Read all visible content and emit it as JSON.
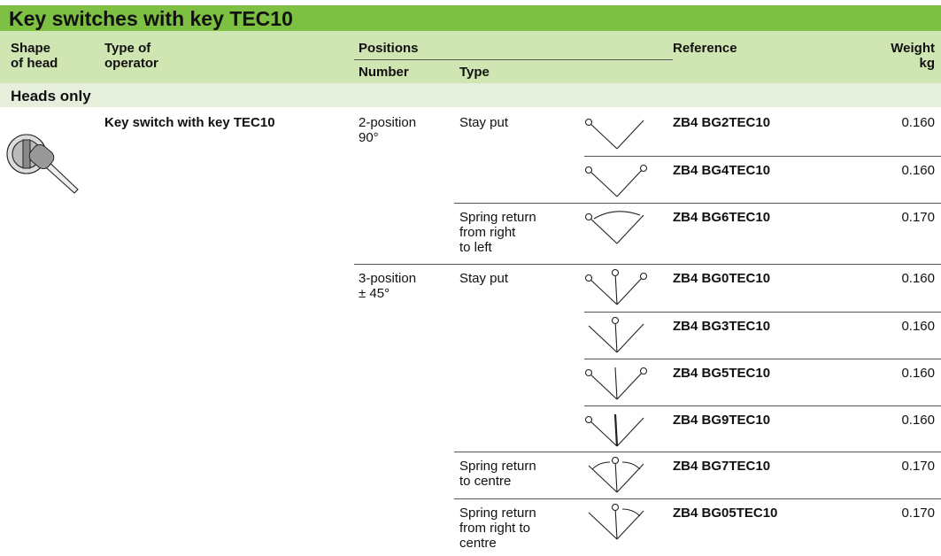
{
  "header": {
    "title": "Key switches with key TEC10"
  },
  "table": {
    "columns": {
      "shape": "Shape\nof head",
      "operator": "Type of\noperator",
      "positions": "Positions",
      "number": "Number",
      "type": "Type",
      "reference": "Reference",
      "weight": "Weight\nkg"
    },
    "section": "Heads only",
    "operator": "Key switch with key TEC10",
    "rows": [
      {
        "number": "2-position\n90°",
        "type": "Stay put",
        "reference": "ZB4 BG2TEC10",
        "weight": "0.160"
      },
      {
        "reference": "ZB4 BG4TEC10",
        "weight": "0.160"
      },
      {
        "type": "Spring return\nfrom right\nto left",
        "reference": "ZB4 BG6TEC10",
        "weight": "0.170"
      },
      {
        "number": "3-position\n± 45°",
        "type": "Stay put",
        "reference": "ZB4 BG0TEC10",
        "weight": "0.160"
      },
      {
        "reference": "ZB4 BG3TEC10",
        "weight": "0.160"
      },
      {
        "reference": "ZB4 BG5TEC10",
        "weight": "0.160"
      },
      {
        "reference": "ZB4 BG9TEC10",
        "weight": "0.160"
      },
      {
        "type": "Spring return\nto centre",
        "reference": "ZB4 BG7TEC10",
        "weight": "0.170"
      },
      {
        "type": "Spring return\nfrom right to\ncentre",
        "reference": "ZB4 BG05TEC10",
        "weight": "0.170"
      }
    ]
  }
}
